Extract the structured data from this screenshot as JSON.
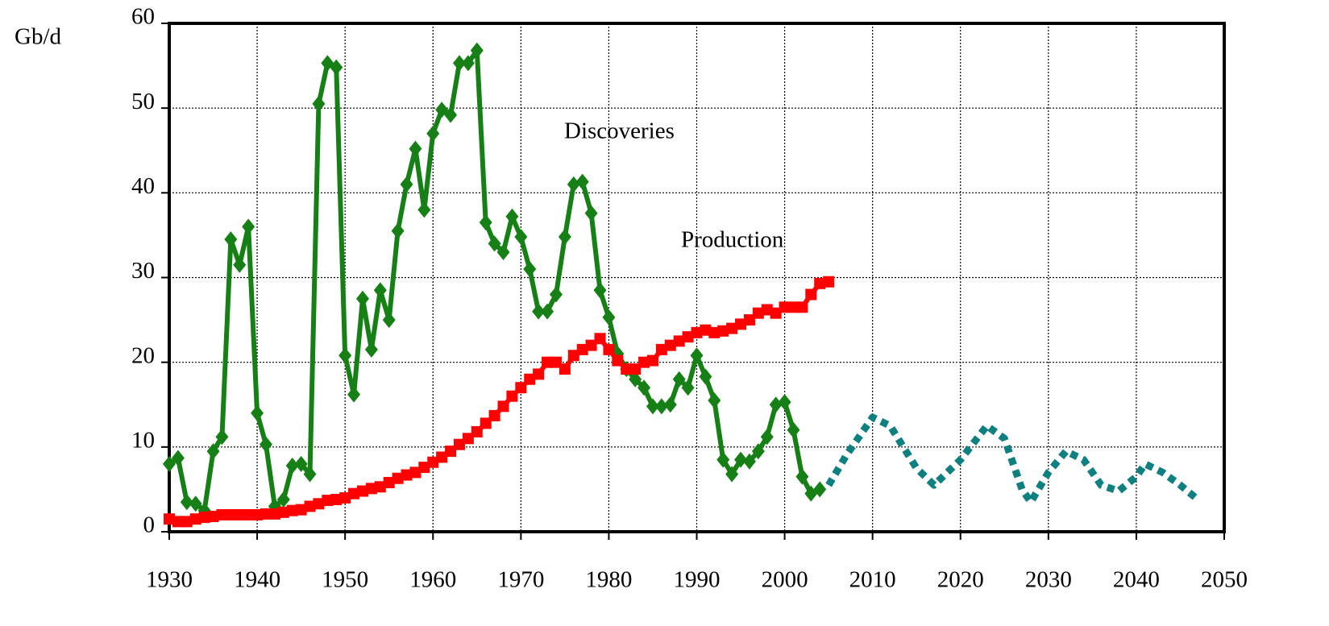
{
  "chart_data": {
    "type": "line",
    "y_label": "Gb/d",
    "xlim": [
      1930,
      2050
    ],
    "xticks": [
      1930,
      1940,
      1950,
      1960,
      1970,
      1980,
      1990,
      2000,
      2010,
      2020,
      2030,
      2040,
      2050
    ],
    "ylim": [
      0,
      60
    ],
    "yticks": [
      0,
      10,
      20,
      30,
      40,
      50,
      60
    ],
    "grid": true,
    "series": [
      {
        "name": "Discoveries",
        "color": "#168016",
        "marker": "diamond",
        "dash": false,
        "x": [
          1930,
          1931,
          1932,
          1933,
          1934,
          1935,
          1936,
          1937,
          1938,
          1939,
          1940,
          1941,
          1942,
          1943,
          1944,
          1945,
          1946,
          1947,
          1948,
          1949,
          1950,
          1951,
          1952,
          1953,
          1954,
          1955,
          1956,
          1957,
          1958,
          1959,
          1960,
          1961,
          1962,
          1963,
          1964,
          1965,
          1966,
          1967,
          1968,
          1969,
          1970,
          1971,
          1972,
          1973,
          1974,
          1975,
          1976,
          1977,
          1978,
          1979,
          1980,
          1981,
          1982,
          1983,
          1984,
          1985,
          1986,
          1987,
          1988,
          1989,
          1990,
          1991,
          1992,
          1993,
          1994,
          1995,
          1996,
          1997,
          1998,
          1999,
          2000,
          2001,
          2002,
          2003,
          2004
        ],
        "values": [
          8,
          8.7,
          3.5,
          3.3,
          2.5,
          9.5,
          11.2,
          34.5,
          31.5,
          36,
          14,
          10.3,
          3,
          3.8,
          7.8,
          8,
          6.8,
          50.5,
          55.3,
          54.8,
          20.8,
          16.2,
          27.5,
          21.5,
          28.5,
          25,
          35.5,
          41,
          45.2,
          38,
          47,
          49.8,
          49.2,
          55.3,
          55.3,
          56.8,
          36.5,
          34,
          33,
          37.2,
          34.8,
          31,
          26,
          26,
          28,
          34.8,
          41,
          41.3,
          37.6,
          28.5,
          25.3,
          21,
          19.2,
          18,
          17,
          14.8,
          14.8,
          15,
          18,
          17,
          20.8,
          18.3,
          15.5,
          8.5,
          6.8,
          8.5,
          8.3,
          9.5,
          11.2,
          15,
          15.3,
          12,
          6.5,
          4.5,
          5
        ]
      },
      {
        "name": "Production",
        "color": "#ff0000",
        "marker": "square",
        "dash": false,
        "x": [
          1930,
          1931,
          1932,
          1933,
          1934,
          1935,
          1936,
          1937,
          1938,
          1939,
          1940,
          1941,
          1942,
          1943,
          1944,
          1945,
          1946,
          1947,
          1948,
          1949,
          1950,
          1951,
          1952,
          1953,
          1954,
          1955,
          1956,
          1957,
          1958,
          1959,
          1960,
          1961,
          1962,
          1963,
          1964,
          1965,
          1966,
          1967,
          1968,
          1969,
          1970,
          1971,
          1972,
          1973,
          1974,
          1975,
          1976,
          1977,
          1978,
          1979,
          1980,
          1981,
          1982,
          1983,
          1984,
          1985,
          1986,
          1987,
          1988,
          1989,
          1990,
          1991,
          1992,
          1993,
          1994,
          1995,
          1996,
          1997,
          1998,
          1999,
          2000,
          2001,
          2002,
          2003,
          2004,
          2005
        ],
        "values": [
          1.5,
          1.2,
          1.2,
          1.5,
          1.7,
          1.8,
          2,
          2,
          2,
          2,
          2,
          2.1,
          2.1,
          2.3,
          2.5,
          2.6,
          3,
          3.3,
          3.7,
          3.8,
          4,
          4.5,
          4.8,
          5.1,
          5.3,
          5.8,
          6.3,
          6.7,
          7,
          7.6,
          8.2,
          8.8,
          9.5,
          10.3,
          11,
          11.8,
          12.8,
          13.7,
          14.8,
          16,
          17,
          18,
          18.6,
          20,
          20,
          19.2,
          20.8,
          21.5,
          22,
          22.8,
          21.5,
          20.2,
          19.2,
          19.2,
          20,
          20.2,
          21.5,
          22,
          22.5,
          23,
          23.5,
          23.8,
          23.5,
          23.7,
          24,
          24.5,
          25,
          25.8,
          26.2,
          25.8,
          26.5,
          26.5,
          26.5,
          28,
          29.3,
          29.5
        ]
      },
      {
        "color": "#0f7f7f",
        "marker": "none",
        "dash": true,
        "x": [
          2005,
          2007,
          2010,
          2012,
          2015,
          2017,
          2020,
          2023,
          2025,
          2027,
          2028,
          2030,
          2032,
          2034,
          2036,
          2038,
          2040,
          2041,
          2043,
          2045,
          2047
        ],
        "values": [
          5.5,
          9,
          13.5,
          12.5,
          7.5,
          5.5,
          8.5,
          12.5,
          11,
          5,
          3.5,
          7,
          9.5,
          8.5,
          5.5,
          4.8,
          6.5,
          8,
          7,
          5.5,
          3.8
        ]
      }
    ]
  }
}
